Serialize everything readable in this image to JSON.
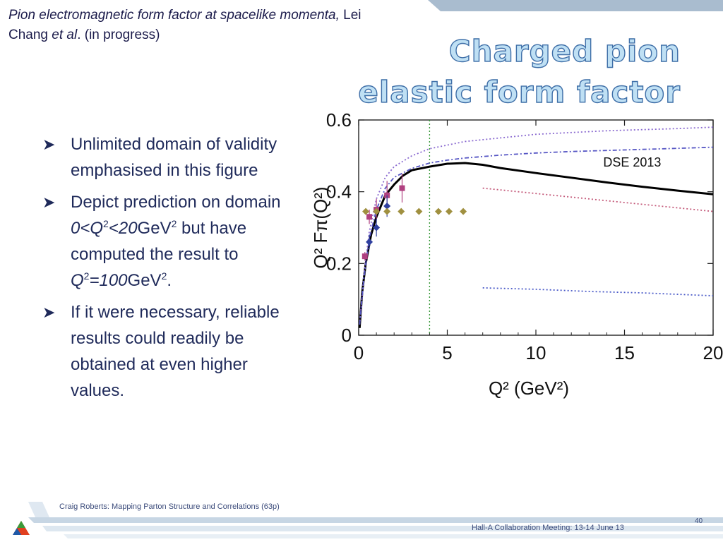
{
  "reference": {
    "italic_title": "Pion electromagnetic form factor at spacelike momenta,",
    "authors_pre": " Lei Chang ",
    "authors_etal": "et al",
    "authors_post": ".  (in progress)"
  },
  "slide_title": {
    "line1": "Charged pion",
    "line2": "elastic form factor"
  },
  "bullets": [
    {
      "text": "Unlimited domain of validity emphasised in this figure"
    },
    {
      "pre": "Depict prediction on domain ",
      "range_italic_a": "0<Q",
      "sup1": "2",
      "range_italic_b": "<20",
      "unit": "GeV",
      "sup2": "2",
      "mid": " but have computed the result to ",
      "q_italic": "Q",
      "sup3": "2",
      "val_italic": "=100",
      "unit2": "GeV",
      "sup4": "2",
      "end": "."
    },
    {
      "text": "If it were necessary, reliable results could readily be obtained at even higher values."
    }
  ],
  "bullet_icon": "arrow-bullet-icon",
  "footer": {
    "left": "Craig Roberts: Mapping Parton Structure and Correlations (63p)",
    "right": "Hall-A Collaboration Meeting: 13-14 June 13",
    "page": "40"
  },
  "chart_data": {
    "type": "line",
    "xlabel": "Q² (GeV²)",
    "ylabel": "Q² Fπ(Q²)",
    "xlim": [
      0,
      20
    ],
    "ylim": [
      0,
      0.6
    ],
    "xticks": [
      0,
      5,
      10,
      15,
      20
    ],
    "yticks": [
      0,
      0.2,
      0.4,
      0.6
    ],
    "ytick_labels": [
      "0",
      "0.2",
      "0.4",
      "0.6"
    ],
    "annotation": "DSE 2013",
    "vline_x": 4.0,
    "series": [
      {
        "style": "solid",
        "color": "#000000",
        "x": [
          0.05,
          0.2,
          0.4,
          0.7,
          1.0,
          1.5,
          2.0,
          2.5,
          3.0,
          4.0,
          5.0,
          6.0,
          7.0,
          8.0,
          10,
          12,
          14,
          16,
          18,
          20
        ],
        "y": [
          0.02,
          0.12,
          0.2,
          0.28,
          0.33,
          0.39,
          0.42,
          0.445,
          0.46,
          0.47,
          0.478,
          0.48,
          0.475,
          0.466,
          0.452,
          0.439,
          0.426,
          0.414,
          0.403,
          0.393
        ]
      },
      {
        "style": "dotted",
        "color": "#8a6ad0",
        "x": [
          0.05,
          0.3,
          0.6,
          1.0,
          1.5,
          2.0,
          3.0,
          4.0,
          5.0,
          6.0,
          8.0,
          10,
          12,
          14,
          16,
          18,
          20
        ],
        "y": [
          0.03,
          0.17,
          0.29,
          0.38,
          0.44,
          0.47,
          0.5,
          0.52,
          0.53,
          0.54,
          0.55,
          0.56,
          0.565,
          0.57,
          0.573,
          0.576,
          0.58
        ]
      },
      {
        "style": "dashdot",
        "color": "#5656c4",
        "x": [
          0.05,
          0.3,
          0.6,
          1.0,
          1.5,
          2.0,
          3.0,
          4.0,
          5.0,
          6.0,
          8.0,
          10,
          12,
          14,
          16,
          18,
          20
        ],
        "y": [
          0.03,
          0.16,
          0.27,
          0.35,
          0.41,
          0.44,
          0.465,
          0.48,
          0.488,
          0.494,
          0.502,
          0.508,
          0.512,
          0.515,
          0.518,
          0.521,
          0.524
        ]
      },
      {
        "style": "dotted",
        "color": "#c45a7a",
        "x": [
          7,
          8,
          10,
          12,
          14,
          16,
          18,
          20
        ],
        "y": [
          0.41,
          0.405,
          0.395,
          0.385,
          0.375,
          0.365,
          0.355,
          0.345
        ]
      },
      {
        "style": "dotted",
        "color": "#4a5ac8",
        "x": [
          7,
          10,
          13,
          16,
          20
        ],
        "y": [
          0.132,
          0.128,
          0.122,
          0.118,
          0.11
        ]
      }
    ],
    "data_points": [
      {
        "group": "magenta-squares",
        "color": "#b04080",
        "points": [
          {
            "x": 0.35,
            "y": 0.22,
            "err": 0.012
          },
          {
            "x": 0.6,
            "y": 0.33,
            "err": 0.02
          },
          {
            "x": 1.0,
            "y": 0.35,
            "err": 0.03
          },
          {
            "x": 1.6,
            "y": 0.39,
            "err": 0.04
          },
          {
            "x": 2.45,
            "y": 0.41,
            "err": 0.04
          }
        ]
      },
      {
        "group": "blue-diamonds",
        "color": "#3040a0",
        "points": [
          {
            "x": 0.6,
            "y": 0.26,
            "err": 0.02
          },
          {
            "x": 1.0,
            "y": 0.3,
            "err": 0.025
          },
          {
            "x": 1.6,
            "y": 0.36,
            "err": 0.03
          }
        ]
      },
      {
        "group": "olive-diamonds",
        "color": "#a09040",
        "points": [
          {
            "x": 0.4,
            "y": 0.345,
            "err": 0
          },
          {
            "x": 1.0,
            "y": 0.345,
            "err": 0
          },
          {
            "x": 1.6,
            "y": 0.345,
            "err": 0
          },
          {
            "x": 2.4,
            "y": 0.345,
            "err": 0
          },
          {
            "x": 3.4,
            "y": 0.345,
            "err": 0
          },
          {
            "x": 4.5,
            "y": 0.345,
            "err": 0
          },
          {
            "x": 5.1,
            "y": 0.345,
            "err": 0
          },
          {
            "x": 5.9,
            "y": 0.345,
            "err": 0
          }
        ]
      }
    ]
  }
}
